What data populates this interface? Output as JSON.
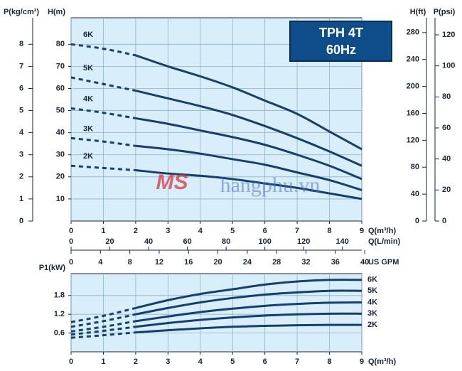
{
  "chart_data": [
    {
      "type": "line",
      "title": "TPH 4T",
      "subtitle": "60Hz",
      "x": [
        0,
        1,
        2,
        3,
        4,
        5,
        6,
        7,
        8,
        9
      ],
      "xlim": [
        0,
        9
      ],
      "xticks": [
        0,
        1,
        2,
        3,
        4,
        5,
        6,
        7,
        8,
        9
      ],
      "x_label": "Q(m³/h)",
      "ylim": [
        0,
        92
      ],
      "yticks": [
        10,
        20,
        30,
        40,
        50,
        60,
        70,
        80
      ],
      "y_label": "H(m)",
      "grid": true,
      "dashed_to_x": 2,
      "color": "#173e6c",
      "series": [
        {
          "name": "6K",
          "values": [
            80,
            78,
            75,
            70,
            65.5,
            60.5,
            54.5,
            48.5,
            40.5,
            32.5
          ]
        },
        {
          "name": "5K",
          "values": [
            65,
            62,
            59,
            55.5,
            52,
            48,
            43,
            37.5,
            31.5,
            25
          ]
        },
        {
          "name": "4K",
          "values": [
            51,
            49,
            46.5,
            44,
            41,
            38,
            34.5,
            30,
            25,
            19
          ]
        },
        {
          "name": "3K",
          "values": [
            37.5,
            36,
            34,
            32.5,
            30.5,
            28,
            25.5,
            22,
            18.5,
            14
          ]
        },
        {
          "name": "2K",
          "values": [
            25,
            24,
            23,
            21.5,
            20.5,
            19,
            17,
            15,
            12.5,
            10
          ]
        }
      ],
      "extra_x_axes": [
        {
          "label": "Q(L/min)",
          "lim": [
            0,
            150
          ],
          "ticks": [
            0,
            20,
            40,
            60,
            80,
            100,
            120,
            140
          ]
        },
        {
          "label": "US GPM",
          "lim": [
            0,
            39.6
          ],
          "ticks": [
            0,
            4,
            8,
            12,
            16,
            20,
            24,
            28,
            32,
            36,
            40
          ]
        }
      ],
      "extra_y_axes": [
        {
          "label": "P(kg/cm²)",
          "side": "left",
          "lim": [
            0,
            9.2
          ],
          "ticks": [
            0,
            1,
            2,
            3,
            4,
            5,
            6,
            7,
            8
          ]
        },
        {
          "label": "H(ft)",
          "side": "right",
          "lim": [
            0,
            302
          ],
          "ticks": [
            0,
            40,
            80,
            120,
            160,
            200,
            240,
            280
          ]
        },
        {
          "label": "P(psi)",
          "side": "right",
          "lim": [
            0,
            131
          ],
          "ticks": [
            0,
            20,
            40,
            60,
            80,
            100,
            120
          ]
        }
      ]
    },
    {
      "type": "line",
      "x": [
        0,
        1,
        2,
        3,
        4,
        5,
        6,
        7,
        8,
        9
      ],
      "xlim": [
        0,
        9
      ],
      "xticks": [
        0,
        1,
        2,
        3,
        4,
        5,
        6,
        7,
        8,
        9
      ],
      "x_label": "Q(m³/h)",
      "ylim": [
        0,
        2.5
      ],
      "yticks": [
        0.6,
        1.2,
        1.8
      ],
      "y_label": "P1(kW)",
      "grid": true,
      "dashed_to_x": 2,
      "color": "#173e6c",
      "series": [
        {
          "name": "6K",
          "values": [
            0.95,
            1.15,
            1.4,
            1.65,
            1.85,
            2.0,
            2.15,
            2.25,
            2.3,
            2.3
          ]
        },
        {
          "name": "5K",
          "values": [
            0.8,
            0.98,
            1.2,
            1.4,
            1.58,
            1.72,
            1.83,
            1.9,
            1.95,
            1.95
          ]
        },
        {
          "name": "4K",
          "values": [
            0.65,
            0.8,
            0.98,
            1.13,
            1.27,
            1.38,
            1.47,
            1.53,
            1.57,
            1.58
          ]
        },
        {
          "name": "3K",
          "values": [
            0.55,
            0.67,
            0.8,
            0.92,
            1.02,
            1.1,
            1.16,
            1.2,
            1.22,
            1.22
          ]
        },
        {
          "name": "2K",
          "values": [
            0.45,
            0.53,
            0.62,
            0.69,
            0.75,
            0.8,
            0.83,
            0.85,
            0.86,
            0.86
          ]
        }
      ]
    }
  ],
  "watermark": {
    "logo": "MS",
    "text": "hangphu.vn"
  }
}
